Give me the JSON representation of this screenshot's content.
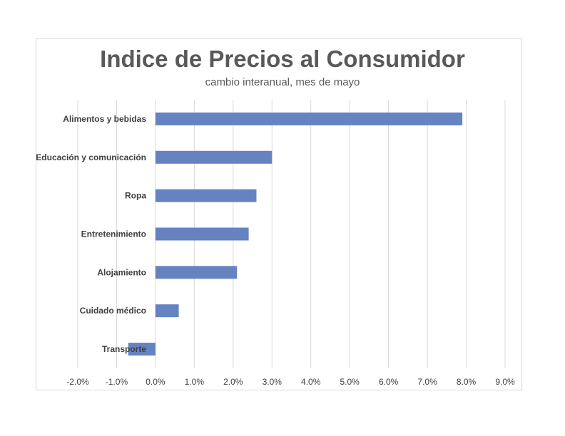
{
  "chart_data": {
    "type": "bar",
    "orientation": "horizontal",
    "title": "Indice de Precios al Consumidor",
    "subtitle": "cambio interanual, mes de mayo",
    "categories": [
      "Alimentos y bebidas",
      "Educación y comunicación",
      "Ropa",
      "Entretenimiento",
      "Alojamiento",
      "Cuidado médico",
      "Transporte"
    ],
    "values": [
      7.9,
      3.0,
      2.6,
      2.4,
      2.1,
      0.6,
      -0.7
    ],
    "value_unit": "%",
    "xlim": [
      -2.0,
      9.0
    ],
    "x_ticks": [
      -2.0,
      -1.0,
      0.0,
      1.0,
      2.0,
      3.0,
      4.0,
      5.0,
      6.0,
      7.0,
      8.0,
      9.0
    ],
    "x_tick_labels": [
      "-2.0%",
      "-1.0%",
      "0.0%",
      "1.0%",
      "2.0%",
      "3.0%",
      "4.0%",
      "5.0%",
      "6.0%",
      "7.0%",
      "8.0%",
      "9.0%"
    ],
    "grid": "vertical",
    "legend": "none",
    "bar_color": "#6583c1",
    "grid_color": "#d9d9d9"
  }
}
